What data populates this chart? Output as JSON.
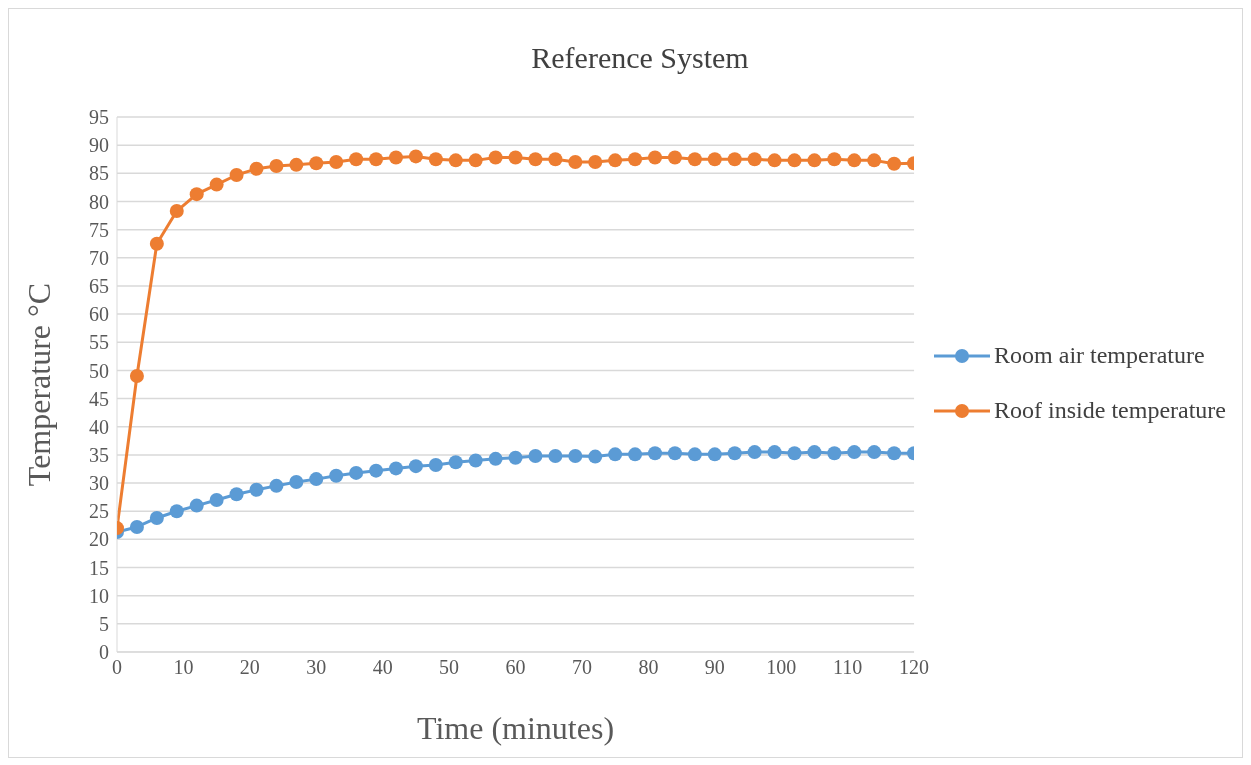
{
  "chart_data": {
    "type": "line",
    "title": "Reference System",
    "xlabel": "Time (minutes)",
    "ylabel": "Temperature °C",
    "x": [
      0,
      3,
      6,
      9,
      12,
      15,
      18,
      21,
      24,
      27,
      30,
      33,
      36,
      39,
      42,
      45,
      48,
      51,
      54,
      57,
      60,
      63,
      66,
      69,
      72,
      75,
      78,
      81,
      84,
      87,
      90,
      93,
      96,
      99,
      102,
      105,
      108,
      111,
      114,
      117,
      120
    ],
    "series": [
      {
        "name": "Room air temperature",
        "color": "#5b9bd5",
        "values": [
          21.3,
          22.2,
          23.8,
          25,
          26,
          27,
          28,
          28.8,
          29.5,
          30.2,
          30.7,
          31.3,
          31.8,
          32.2,
          32.6,
          33,
          33.2,
          33.7,
          34,
          34.3,
          34.5,
          34.8,
          34.8,
          34.8,
          34.7,
          35.1,
          35.1,
          35.3,
          35.3,
          35.1,
          35.1,
          35.3,
          35.5,
          35.5,
          35.3,
          35.5,
          35.3,
          35.5,
          35.5,
          35.3,
          35.3
        ]
      },
      {
        "name": "Roof inside temperature",
        "color": "#ed7d31",
        "values": [
          22,
          49,
          72.5,
          78.3,
          81.3,
          83,
          84.7,
          85.8,
          86.3,
          86.5,
          86.8,
          87,
          87.5,
          87.5,
          87.8,
          88,
          87.5,
          87.3,
          87.3,
          87.8,
          87.8,
          87.5,
          87.5,
          87,
          87,
          87.3,
          87.5,
          87.8,
          87.8,
          87.5,
          87.5,
          87.5,
          87.5,
          87.3,
          87.3,
          87.3,
          87.5,
          87.3,
          87.3,
          86.7,
          86.8
        ]
      }
    ],
    "xlim": [
      0,
      120
    ],
    "xticks": [
      0,
      10,
      20,
      30,
      40,
      50,
      60,
      70,
      80,
      90,
      100,
      110,
      120
    ],
    "ylim": [
      0,
      95
    ],
    "yticks": [
      0,
      5,
      10,
      15,
      20,
      25,
      30,
      35,
      40,
      45,
      50,
      55,
      60,
      65,
      70,
      75,
      80,
      85,
      90,
      95
    ],
    "grid": "y",
    "legend": "right",
    "marker": "circle",
    "line_style": "solid"
  }
}
